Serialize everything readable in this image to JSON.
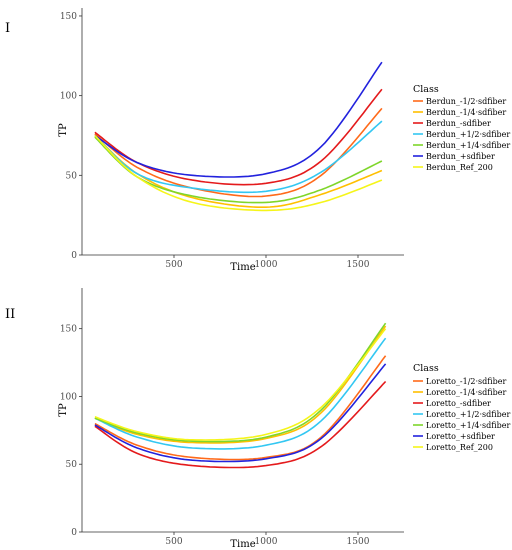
{
  "chart_data": [
    {
      "type": "line",
      "panel_label": "I",
      "xlabel": "Time",
      "ylabel": "TP",
      "xlim": [
        0,
        1750
      ],
      "ylim": [
        0,
        155
      ],
      "x_ticks": [
        "500",
        "1000",
        "1500"
      ],
      "x_tick_values": [
        500,
        1000,
        1500
      ],
      "y_ticks": [
        "0",
        "50",
        "100",
        "150"
      ],
      "y_tick_values": [
        0,
        50,
        100,
        150
      ],
      "grid": false,
      "legend_title": "Class",
      "legend_position": "right",
      "series": [
        {
          "name": "Berdun_-1/2·sdfiber",
          "color": "#ff6a1a",
          "x": [
            70,
            300,
            600,
            1000,
            1300,
            1630
          ],
          "values": [
            76,
            55,
            42,
            37,
            50,
            92
          ]
        },
        {
          "name": "Berdun_-1/4·sdfiber",
          "color": "#ffbf00",
          "x": [
            70,
            300,
            600,
            1000,
            1300,
            1630
          ],
          "values": [
            75,
            51,
            36,
            30,
            38,
            53
          ]
        },
        {
          "name": "Berdun_-sdfiber",
          "color": "#e41a1c",
          "x": [
            70,
            300,
            600,
            1000,
            1300,
            1630
          ],
          "values": [
            77,
            58,
            47,
            45,
            59,
            104
          ]
        },
        {
          "name": "Berdun_+1/2·sdfiber",
          "color": "#33c7f2",
          "x": [
            70,
            300,
            600,
            1000,
            1300,
            1630
          ],
          "values": [
            75,
            51,
            42,
            40,
            52,
            84
          ]
        },
        {
          "name": "Berdun_+1/4·sdfiber",
          "color": "#7fd62b",
          "x": [
            70,
            300,
            600,
            1000,
            1300,
            1630
          ],
          "values": [
            74,
            49,
            37,
            33,
            41,
            59
          ]
        },
        {
          "name": "Berdun_+sdfiber",
          "color": "#2222dd",
          "x": [
            70,
            300,
            600,
            1000,
            1300,
            1630
          ],
          "values": [
            75,
            58,
            50,
            51,
            68,
            121
          ]
        },
        {
          "name": "Berdun_Ref_200",
          "color": "#f5f51a",
          "x": [
            70,
            300,
            600,
            1000,
            1300,
            1630
          ],
          "values": [
            75,
            49,
            33,
            28,
            33,
            47
          ]
        }
      ]
    },
    {
      "type": "line",
      "panel_label": "II",
      "xlabel": "Time",
      "ylabel": "TP",
      "xlim": [
        0,
        1750
      ],
      "ylim": [
        0,
        180
      ],
      "x_ticks": [
        "500",
        "1000",
        "1500"
      ],
      "x_tick_values": [
        500,
        1000,
        1500
      ],
      "y_ticks": [
        "0",
        "50",
        "100",
        "150"
      ],
      "y_tick_values": [
        0,
        50,
        100,
        150
      ],
      "grid": false,
      "legend_title": "Class",
      "legend_position": "right",
      "series": [
        {
          "name": "Loretto_-1/2·sdfiber",
          "color": "#ff6a1a",
          "x": [
            70,
            300,
            600,
            1000,
            1300,
            1650
          ],
          "values": [
            80,
            64,
            55,
            55,
            70,
            130
          ]
        },
        {
          "name": "Loretto_-1/4·sdfiber",
          "color": "#ffbf00",
          "x": [
            70,
            300,
            600,
            1000,
            1300,
            1650
          ],
          "values": [
            84,
            72,
            66,
            69,
            88,
            152
          ]
        },
        {
          "name": "Loretto_-sdfiber",
          "color": "#e41a1c",
          "x": [
            70,
            300,
            600,
            1000,
            1300,
            1650
          ],
          "values": [
            78,
            58,
            49,
            49,
            63,
            111
          ]
        },
        {
          "name": "Loretto_+1/2·sdfiber",
          "color": "#33c7f2",
          "x": [
            70,
            300,
            600,
            1000,
            1300,
            1650
          ],
          "values": [
            84,
            70,
            62,
            64,
            82,
            143
          ]
        },
        {
          "name": "Loretto_+1/4·sdfiber",
          "color": "#7fd62b",
          "x": [
            70,
            300,
            600,
            1000,
            1300,
            1650
          ],
          "values": [
            84,
            73,
            67,
            70,
            90,
            154
          ]
        },
        {
          "name": "Loretto_+sdfiber",
          "color": "#2222dd",
          "x": [
            70,
            300,
            600,
            1000,
            1300,
            1650
          ],
          "values": [
            79,
            62,
            53,
            54,
            69,
            124
          ]
        },
        {
          "name": "Loretto_Ref_200",
          "color": "#f5f51a",
          "x": [
            70,
            300,
            600,
            1000,
            1300,
            1650
          ],
          "values": [
            85,
            74,
            68,
            72,
            92,
            150
          ]
        }
      ]
    }
  ]
}
